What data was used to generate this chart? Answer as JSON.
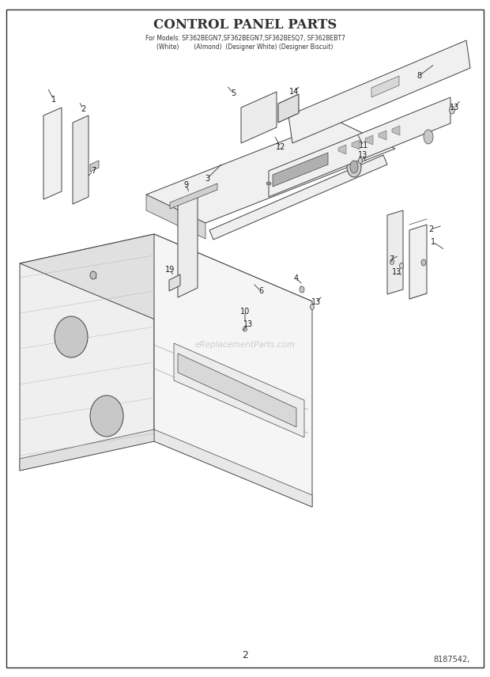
{
  "title_line1": "CONTROL PANEL PARTS",
  "title_line2": "For Models: SF362BEGN7,SF362BEGN7,SF362BESQ7, SF362BEBT7",
  "title_line3": "(White)        (Almond)  (Designer White) (Designer Biscuit)",
  "page_number": "2",
  "doc_number": "8187542,",
  "watermark": "eReplacementParts.com",
  "bg_color": "#ffffff",
  "lc": "#404040",
  "fig_width": 6.2,
  "fig_height": 8.56,
  "dpi": 100
}
